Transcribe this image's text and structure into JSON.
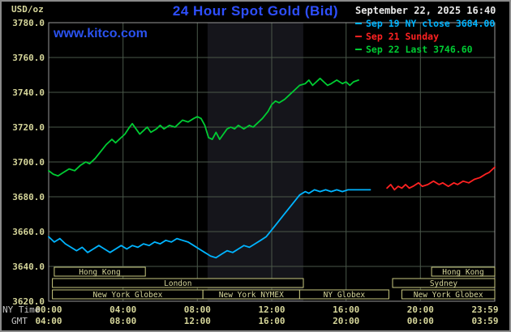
{
  "header": {
    "unit_label": "USD/oz",
    "title": "24 Hour Spot Gold (Bid)",
    "datetime": "September 22, 2025 16:40",
    "watermark": "www.kitco.com",
    "legend": [
      {
        "label": "Sep 19 NY close 3684.00",
        "color": "#00b4ff"
      },
      {
        "label": "Sep 21 Sunday",
        "color": "#ff2222"
      },
      {
        "label": "Sep 22 Last 3746.60",
        "color": "#00cc33"
      }
    ]
  },
  "axes": {
    "ny_label": "NY Time",
    "gmt_label": "GMT",
    "tick_hours": [
      0,
      4,
      8,
      12,
      16,
      20,
      24
    ],
    "ny_ticks": [
      "00:00",
      "04:00",
      "08:00",
      "12:00",
      "16:00",
      "20:00",
      "23:59"
    ],
    "gmt_ticks": [
      "04:00",
      "08:00",
      "12:00",
      "16:00",
      "20:00",
      "00:00",
      "03:59"
    ]
  },
  "sessions": [
    {
      "row": 0,
      "label": "Hong Kong",
      "start": 0.3,
      "end": 5.2
    },
    {
      "row": 0,
      "label": "Hong Kong",
      "start": 20.6,
      "end": 24
    },
    {
      "row": 1,
      "label": "London",
      "start": 0.2,
      "end": 13.7
    },
    {
      "row": 1,
      "label": "Sydney",
      "start": 18.5,
      "end": 24
    },
    {
      "row": 2,
      "label": "New York Globex",
      "start": 0.2,
      "end": 8.3
    },
    {
      "row": 2,
      "label": "New York NYMEX",
      "start": 8.3,
      "end": 13.5
    },
    {
      "row": 2,
      "label": "NY Globex",
      "start": 13.5,
      "end": 18.3
    },
    {
      "row": 2,
      "label": "New York Globex",
      "start": 19.0,
      "end": 24
    }
  ],
  "colors": {
    "background": "#000000",
    "grid": "#4a584a",
    "frame": "#999999",
    "axis_text": "#d6d69a",
    "band": "#15151b",
    "session_box": "#c9c97f"
  },
  "chart_data": {
    "type": "line",
    "title": "24 Hour Spot Gold (Bid)",
    "xlabel": "NY Time (hours, 00:00-23:59)",
    "ylabel": "USD/oz",
    "xlim": [
      0,
      24
    ],
    "ylim": [
      3620,
      3780
    ],
    "y_tick_step": 20,
    "grid": true,
    "legend_position": "top-right",
    "highlight_band": {
      "x0": 8.55,
      "x1": 13.7
    },
    "series": [
      {
        "id": "sep19",
        "name": "Sep 19 NY close 3684.00",
        "color": "#00b4ff",
        "points": [
          [
            0,
            3657
          ],
          [
            0.3,
            3654
          ],
          [
            0.6,
            3656
          ],
          [
            0.9,
            3653
          ],
          [
            1.2,
            3651
          ],
          [
            1.5,
            3649
          ],
          [
            1.8,
            3651
          ],
          [
            2.1,
            3648
          ],
          [
            2.4,
            3650
          ],
          [
            2.7,
            3652
          ],
          [
            3,
            3650
          ],
          [
            3.3,
            3648
          ],
          [
            3.6,
            3650
          ],
          [
            3.9,
            3652
          ],
          [
            4.2,
            3650
          ],
          [
            4.5,
            3652
          ],
          [
            4.8,
            3651
          ],
          [
            5.1,
            3653
          ],
          [
            5.4,
            3652
          ],
          [
            5.7,
            3654
          ],
          [
            6,
            3653
          ],
          [
            6.3,
            3655
          ],
          [
            6.6,
            3654
          ],
          [
            6.9,
            3656
          ],
          [
            7.2,
            3655
          ],
          [
            7.5,
            3654
          ],
          [
            7.8,
            3652
          ],
          [
            8.1,
            3650
          ],
          [
            8.4,
            3648
          ],
          [
            8.7,
            3646
          ],
          [
            9,
            3645
          ],
          [
            9.3,
            3647
          ],
          [
            9.6,
            3649
          ],
          [
            9.9,
            3648
          ],
          [
            10.2,
            3650
          ],
          [
            10.5,
            3652
          ],
          [
            10.8,
            3651
          ],
          [
            11.1,
            3653
          ],
          [
            11.4,
            3655
          ],
          [
            11.7,
            3657
          ],
          [
            12,
            3661
          ],
          [
            12.3,
            3665
          ],
          [
            12.6,
            3669
          ],
          [
            12.9,
            3673
          ],
          [
            13.2,
            3677
          ],
          [
            13.5,
            3681
          ],
          [
            13.8,
            3683
          ],
          [
            14,
            3682
          ],
          [
            14.3,
            3684
          ],
          [
            14.6,
            3683
          ],
          [
            14.9,
            3684
          ],
          [
            15.2,
            3683
          ],
          [
            15.5,
            3684
          ],
          [
            15.8,
            3683
          ],
          [
            16.1,
            3684
          ],
          [
            16.5,
            3684
          ],
          [
            17.3,
            3684
          ]
        ]
      },
      {
        "id": "sep21",
        "name": "Sep 21 Sunday",
        "color": "#ff2222",
        "points": [
          [
            18.2,
            3685
          ],
          [
            18.4,
            3687
          ],
          [
            18.6,
            3684
          ],
          [
            18.8,
            3686
          ],
          [
            19,
            3685
          ],
          [
            19.2,
            3687
          ],
          [
            19.4,
            3685
          ],
          [
            19.6,
            3686
          ],
          [
            19.9,
            3688
          ],
          [
            20.1,
            3686
          ],
          [
            20.4,
            3687
          ],
          [
            20.7,
            3689
          ],
          [
            21,
            3687
          ],
          [
            21.2,
            3688
          ],
          [
            21.5,
            3686
          ],
          [
            21.8,
            3688
          ],
          [
            22,
            3687
          ],
          [
            22.3,
            3689
          ],
          [
            22.6,
            3688
          ],
          [
            22.9,
            3690
          ],
          [
            23.2,
            3691
          ],
          [
            23.5,
            3693
          ],
          [
            23.7,
            3694
          ],
          [
            24,
            3697
          ]
        ]
      },
      {
        "id": "sep22",
        "name": "Sep 22 Last 3746.60",
        "color": "#00cc33",
        "points": [
          [
            0,
            3695
          ],
          [
            0.25,
            3693
          ],
          [
            0.5,
            3692
          ],
          [
            0.8,
            3694
          ],
          [
            1.1,
            3696
          ],
          [
            1.4,
            3695
          ],
          [
            1.7,
            3698
          ],
          [
            2,
            3700
          ],
          [
            2.2,
            3699
          ],
          [
            2.5,
            3702
          ],
          [
            2.8,
            3706
          ],
          [
            3.1,
            3710
          ],
          [
            3.4,
            3713
          ],
          [
            3.6,
            3711
          ],
          [
            3.9,
            3714
          ],
          [
            4.1,
            3716
          ],
          [
            4.35,
            3720
          ],
          [
            4.5,
            3722
          ],
          [
            4.7,
            3719
          ],
          [
            4.9,
            3716
          ],
          [
            5.1,
            3718
          ],
          [
            5.3,
            3720
          ],
          [
            5.5,
            3717
          ],
          [
            5.8,
            3719
          ],
          [
            6,
            3721
          ],
          [
            6.2,
            3719
          ],
          [
            6.5,
            3721
          ],
          [
            6.8,
            3720
          ],
          [
            7,
            3722
          ],
          [
            7.2,
            3724
          ],
          [
            7.5,
            3723
          ],
          [
            7.8,
            3725
          ],
          [
            8,
            3726
          ],
          [
            8.2,
            3725
          ],
          [
            8.4,
            3721
          ],
          [
            8.6,
            3714
          ],
          [
            8.8,
            3713
          ],
          [
            9,
            3717
          ],
          [
            9.2,
            3713
          ],
          [
            9.4,
            3716
          ],
          [
            9.6,
            3719
          ],
          [
            9.8,
            3720
          ],
          [
            10,
            3719
          ],
          [
            10.2,
            3721
          ],
          [
            10.5,
            3719
          ],
          [
            10.8,
            3721
          ],
          [
            11,
            3720
          ],
          [
            11.2,
            3722
          ],
          [
            11.5,
            3725
          ],
          [
            11.8,
            3729
          ],
          [
            12,
            3733
          ],
          [
            12.2,
            3735
          ],
          [
            12.4,
            3734
          ],
          [
            12.7,
            3736
          ],
          [
            13,
            3739
          ],
          [
            13.2,
            3741
          ],
          [
            13.5,
            3744
          ],
          [
            13.8,
            3745
          ],
          [
            14,
            3747
          ],
          [
            14.2,
            3744
          ],
          [
            14.4,
            3746
          ],
          [
            14.6,
            3748
          ],
          [
            14.8,
            3746
          ],
          [
            15,
            3744
          ],
          [
            15.2,
            3745
          ],
          [
            15.5,
            3747
          ],
          [
            15.8,
            3745
          ],
          [
            16,
            3746
          ],
          [
            16.2,
            3744
          ],
          [
            16.4,
            3746
          ],
          [
            16.67,
            3747
          ]
        ]
      }
    ]
  }
}
